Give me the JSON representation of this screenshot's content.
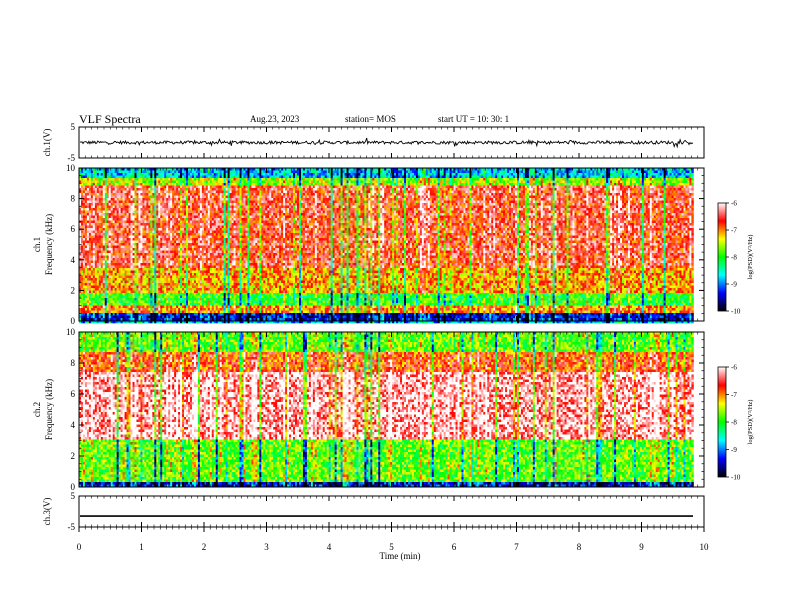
{
  "header": {
    "title": "VLF Spectra",
    "date": "Aug.23, 2023",
    "station": "station= MOS",
    "start_ut": "start  UT =   10: 30: 1"
  },
  "chart_data": [
    {
      "type": "line",
      "name": "ch1-waveform",
      "ylabel": "ch.1(V)",
      "ylim": [
        -5,
        5
      ],
      "yticks": [
        "-5",
        "5"
      ],
      "xlim": [
        0,
        10
      ],
      "level": 0
    },
    {
      "type": "heatmap",
      "name": "ch1-spectrogram",
      "ylabel": "ch.1\nFrequency (kHz)",
      "ylim": [
        0,
        10
      ],
      "yticks": [
        "0",
        "2",
        "4",
        "6",
        "8",
        "10"
      ],
      "xlim": [
        0,
        10
      ],
      "data_end_min": 9.83,
      "bands_khz": [
        {
          "from": 0,
          "to": 0.5,
          "level": 0.15
        },
        {
          "from": 0.5,
          "to": 1.0,
          "level": 0.75
        },
        {
          "from": 1.0,
          "to": 1.8,
          "level": 0.5
        },
        {
          "from": 1.8,
          "to": 3.5,
          "level": 0.72
        },
        {
          "from": 3.5,
          "to": 8.8,
          "level": 0.85
        },
        {
          "from": 8.8,
          "to": 9.4,
          "level": 0.6
        },
        {
          "from": 9.4,
          "to": 10,
          "level": 0.3
        }
      ],
      "colorbar": {
        "label": "log(PSD)(V²/Hz)",
        "range": [
          -10,
          -6
        ],
        "ticks": [
          "-6",
          "-7",
          "-8",
          "-9",
          "-10"
        ]
      }
    },
    {
      "type": "heatmap",
      "name": "ch2-spectrogram",
      "ylabel": "ch.2\nFrequency (kHz)",
      "ylim": [
        0,
        10
      ],
      "yticks": [
        "0",
        "2",
        "4",
        "6",
        "8",
        "10"
      ],
      "xlim": [
        0,
        10
      ],
      "data_end_min": 9.83,
      "bands_khz": [
        {
          "from": 0,
          "to": 0.3,
          "level": 0.15
        },
        {
          "from": 0.3,
          "to": 3.0,
          "level": 0.55
        },
        {
          "from": 3.0,
          "to": 7.5,
          "level": 0.95
        },
        {
          "from": 7.5,
          "to": 8.7,
          "level": 0.8
        },
        {
          "from": 8.7,
          "to": 10,
          "level": 0.55
        }
      ],
      "colorbar": {
        "label": "log(PSD)(V²/Hz)",
        "range": [
          -10,
          -6
        ],
        "ticks": [
          "-6",
          "-7",
          "-8",
          "-9",
          "-10"
        ]
      }
    },
    {
      "type": "line",
      "name": "ch3-waveform",
      "ylabel": "ch.3(V)",
      "ylim": [
        -5,
        5
      ],
      "yticks": [
        "-5",
        "5"
      ],
      "xlim": [
        0,
        10
      ],
      "level": -1.5
    }
  ],
  "x_axis": {
    "label": "Time  (min)",
    "ticks": [
      "0",
      "1",
      "2",
      "3",
      "4",
      "5",
      "6",
      "7",
      "8",
      "9",
      "10"
    ]
  },
  "colors": {
    "colormap": [
      "#000000",
      "#0000ff",
      "#00ffff",
      "#00ff00",
      "#ffff00",
      "#ff0000",
      "#ffffff"
    ]
  }
}
